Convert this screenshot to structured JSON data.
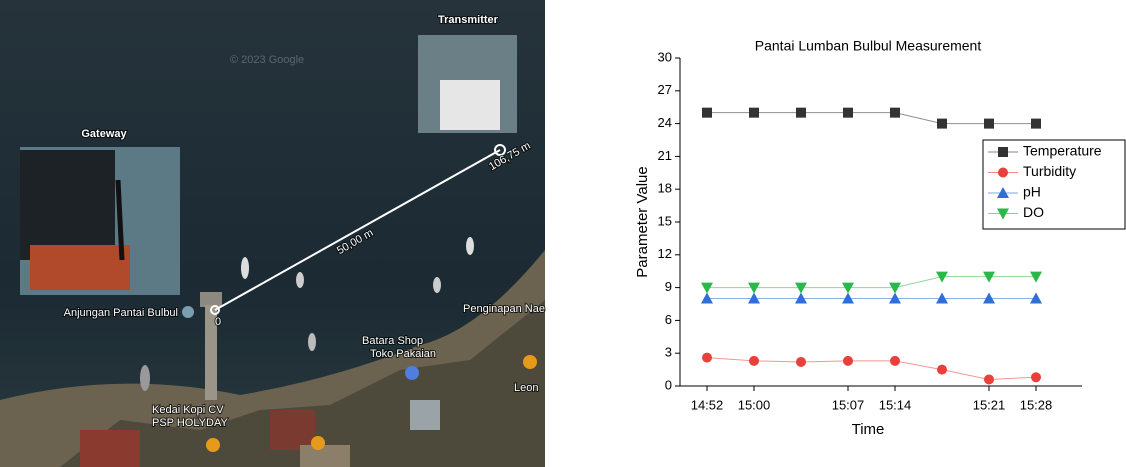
{
  "map": {
    "transmitter_label": "Transmitter",
    "gateway_label": "Gateway",
    "copyright": "© 2023 Google",
    "distance_end": "106,75 m",
    "distance_mid": "50,00 m",
    "distance_start": "0",
    "places": [
      "Anjungan Pantai Bulbul",
      "Penginapan Nae",
      "Batara Shop",
      "Toko Pakaian",
      "Leon",
      "Kedai Kopi CV",
      "PSP HOLYDAY"
    ]
  },
  "chart_data": {
    "type": "line",
    "title": "Pantai Lumban Bulbul Measurement",
    "x_label": "Time",
    "y_label": "Parameter Value",
    "categories": [
      "14:52",
      "15:00",
      null,
      "15:07",
      "15:14",
      null,
      "15:21",
      "15:28"
    ],
    "series": [
      {
        "name": "Temperature",
        "color": "#333333",
        "marker": "square",
        "values": [
          25,
          25,
          25,
          25,
          25,
          24,
          24,
          24
        ]
      },
      {
        "name": "Turbidity",
        "color": "#e8403a",
        "marker": "circle",
        "values": [
          2.6,
          2.3,
          2.2,
          2.3,
          2.3,
          1.5,
          0.6,
          0.8
        ]
      },
      {
        "name": "pH",
        "color": "#2f6fd6",
        "marker": "triangle-up",
        "values": [
          8,
          8,
          8,
          8,
          8,
          8,
          8,
          8
        ]
      },
      {
        "name": "DO",
        "color": "#2bb84a",
        "marker": "triangle-down",
        "values": [
          9,
          9,
          9,
          9,
          9,
          10,
          10,
          10
        ]
      }
    ],
    "ylim": [
      0,
      30
    ],
    "yticks": [
      0,
      3,
      6,
      9,
      12,
      15,
      18,
      21,
      24,
      27,
      30
    ],
    "legend": "upper right",
    "grid": false
  }
}
